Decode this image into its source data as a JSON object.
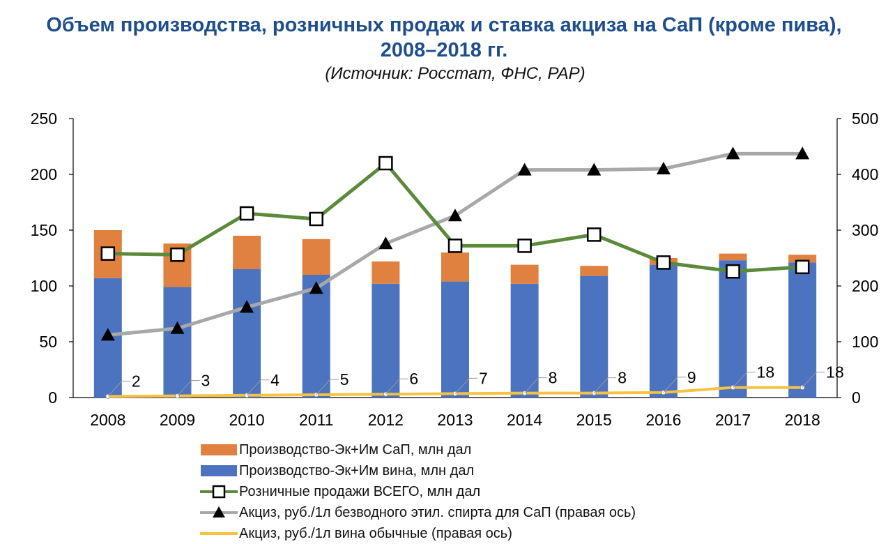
{
  "title": "Объем производства, розничных продаж и ставка акциза на СаП (кроме пива), 2008–2018 гг.",
  "subtitle": "(Источник: Росстат, ФНС, РАР)",
  "colors": {
    "spirits_bar": "#e0813f",
    "wine_bar": "#4b73c0",
    "retail_line": "#5b8a3a",
    "excise_spirit_line": "#a8a8a8",
    "excise_wine_line": "#f5c242"
  },
  "chart_data": {
    "type": "bar",
    "categories": [
      "2008",
      "2009",
      "2010",
      "2011",
      "2012",
      "2013",
      "2014",
      "2015",
      "2016",
      "2017",
      "2018"
    ],
    "left_axis": {
      "ylim": [
        0,
        250
      ],
      "ticks": [
        0,
        50,
        100,
        150,
        200,
        250
      ]
    },
    "right_axis": {
      "ylim": [
        0,
        500
      ],
      "ticks": [
        0,
        100,
        200,
        300,
        400,
        500
      ]
    },
    "series": [
      {
        "name": "Производство-Эк+Им СаП, млн дал",
        "type": "bar-stacked",
        "axis": "left",
        "values": [
          43,
          39,
          30,
          32,
          20,
          26,
          17,
          9,
          6,
          6,
          7
        ],
        "marker": "none"
      },
      {
        "name": "Производство-Эк+Им вина, млн дал",
        "type": "bar-stacked",
        "axis": "left",
        "values": [
          107,
          99,
          115,
          110,
          102,
          104,
          102,
          109,
          119,
          123,
          121
        ],
        "marker": "none"
      },
      {
        "name": "Розничные продажи ВСЕГО, млн дал",
        "type": "line",
        "axis": "left",
        "marker": "square",
        "values": [
          129,
          128,
          165,
          160,
          210,
          136,
          136,
          146,
          121,
          113,
          117
        ]
      },
      {
        "name": "Акциз, руб./1л безводного этил. спирта для СаП (правая ось)",
        "type": "line",
        "axis": "right",
        "marker": "triangle",
        "values": [
          112,
          124,
          162,
          196,
          276,
          326,
          408,
          408,
          410,
          437,
          437
        ]
      },
      {
        "name": "Акциз, руб./1л вина обычные (правая ось)",
        "type": "line",
        "axis": "right",
        "marker": "none",
        "values": [
          2,
          3,
          4,
          5,
          6,
          7,
          8,
          8,
          9,
          18,
          18
        ],
        "data_labels": [
          "2",
          "3",
          "4",
          "5",
          "6",
          "7",
          "8",
          "8",
          "9",
          "18",
          "18"
        ]
      }
    ]
  }
}
